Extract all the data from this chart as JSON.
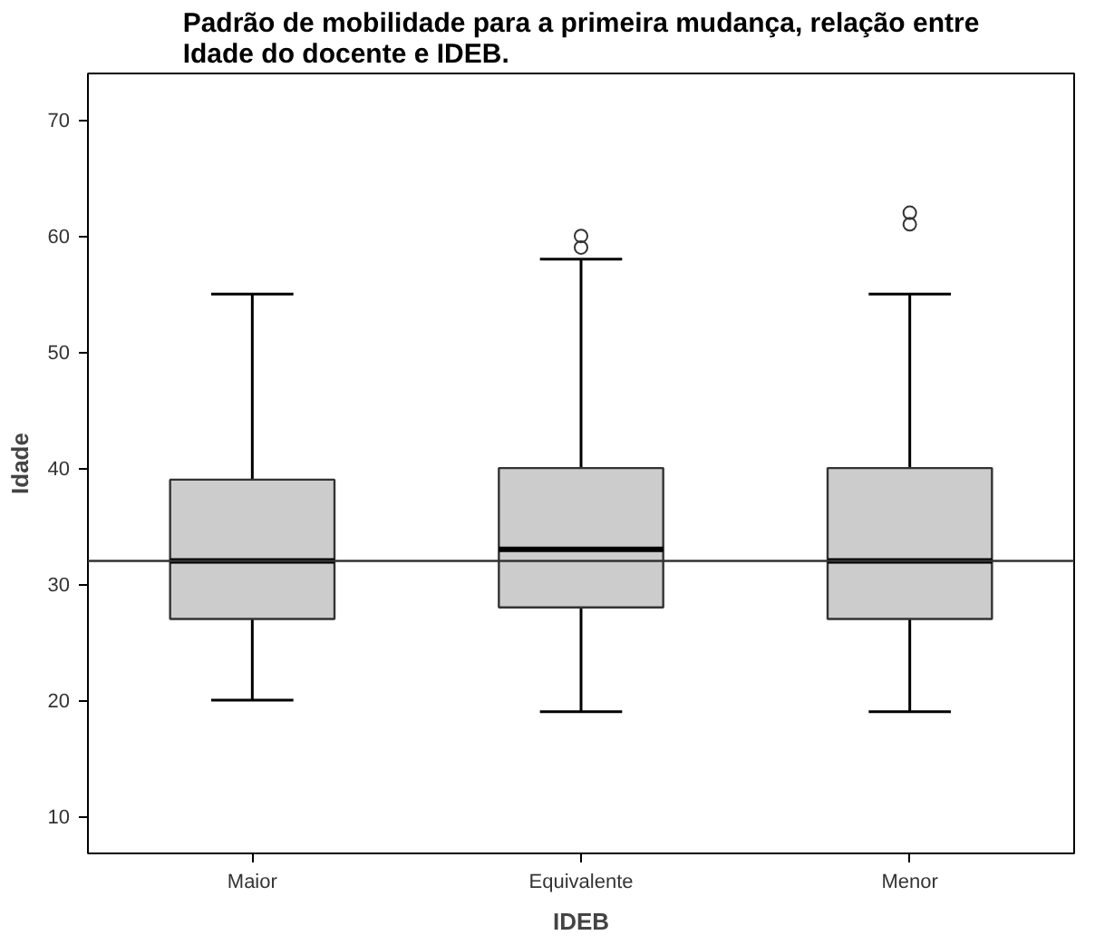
{
  "chart_data": {
    "type": "box",
    "title": "Padrão de mobilidade para a primeira mudança, relação entre\nIdade do docente e IDEB.",
    "xlabel": "IDEB",
    "ylabel": "Idade",
    "categories": [
      "Maior",
      "Equivalente",
      "Menor"
    ],
    "boxes": [
      {
        "low": 20,
        "q1": 27,
        "median": 32,
        "q3": 39,
        "high": 55
      },
      {
        "low": 19,
        "q1": 28,
        "median": 33,
        "q3": 40,
        "high": 58,
        "outliers": [
          59,
          60
        ]
      },
      {
        "low": 19,
        "q1": 27,
        "median": 32,
        "q3": 40,
        "high": 55,
        "outliers": [
          61,
          62
        ]
      }
    ],
    "color": "#cccccc",
    "ylim": [
      6.8,
      74
    ],
    "yticks": [
      10,
      20,
      30,
      40,
      50,
      60,
      70
    ],
    "ref_lines": [
      {
        "axis": "y",
        "value": 32,
        "color": "#333333"
      }
    ],
    "grid": false
  }
}
